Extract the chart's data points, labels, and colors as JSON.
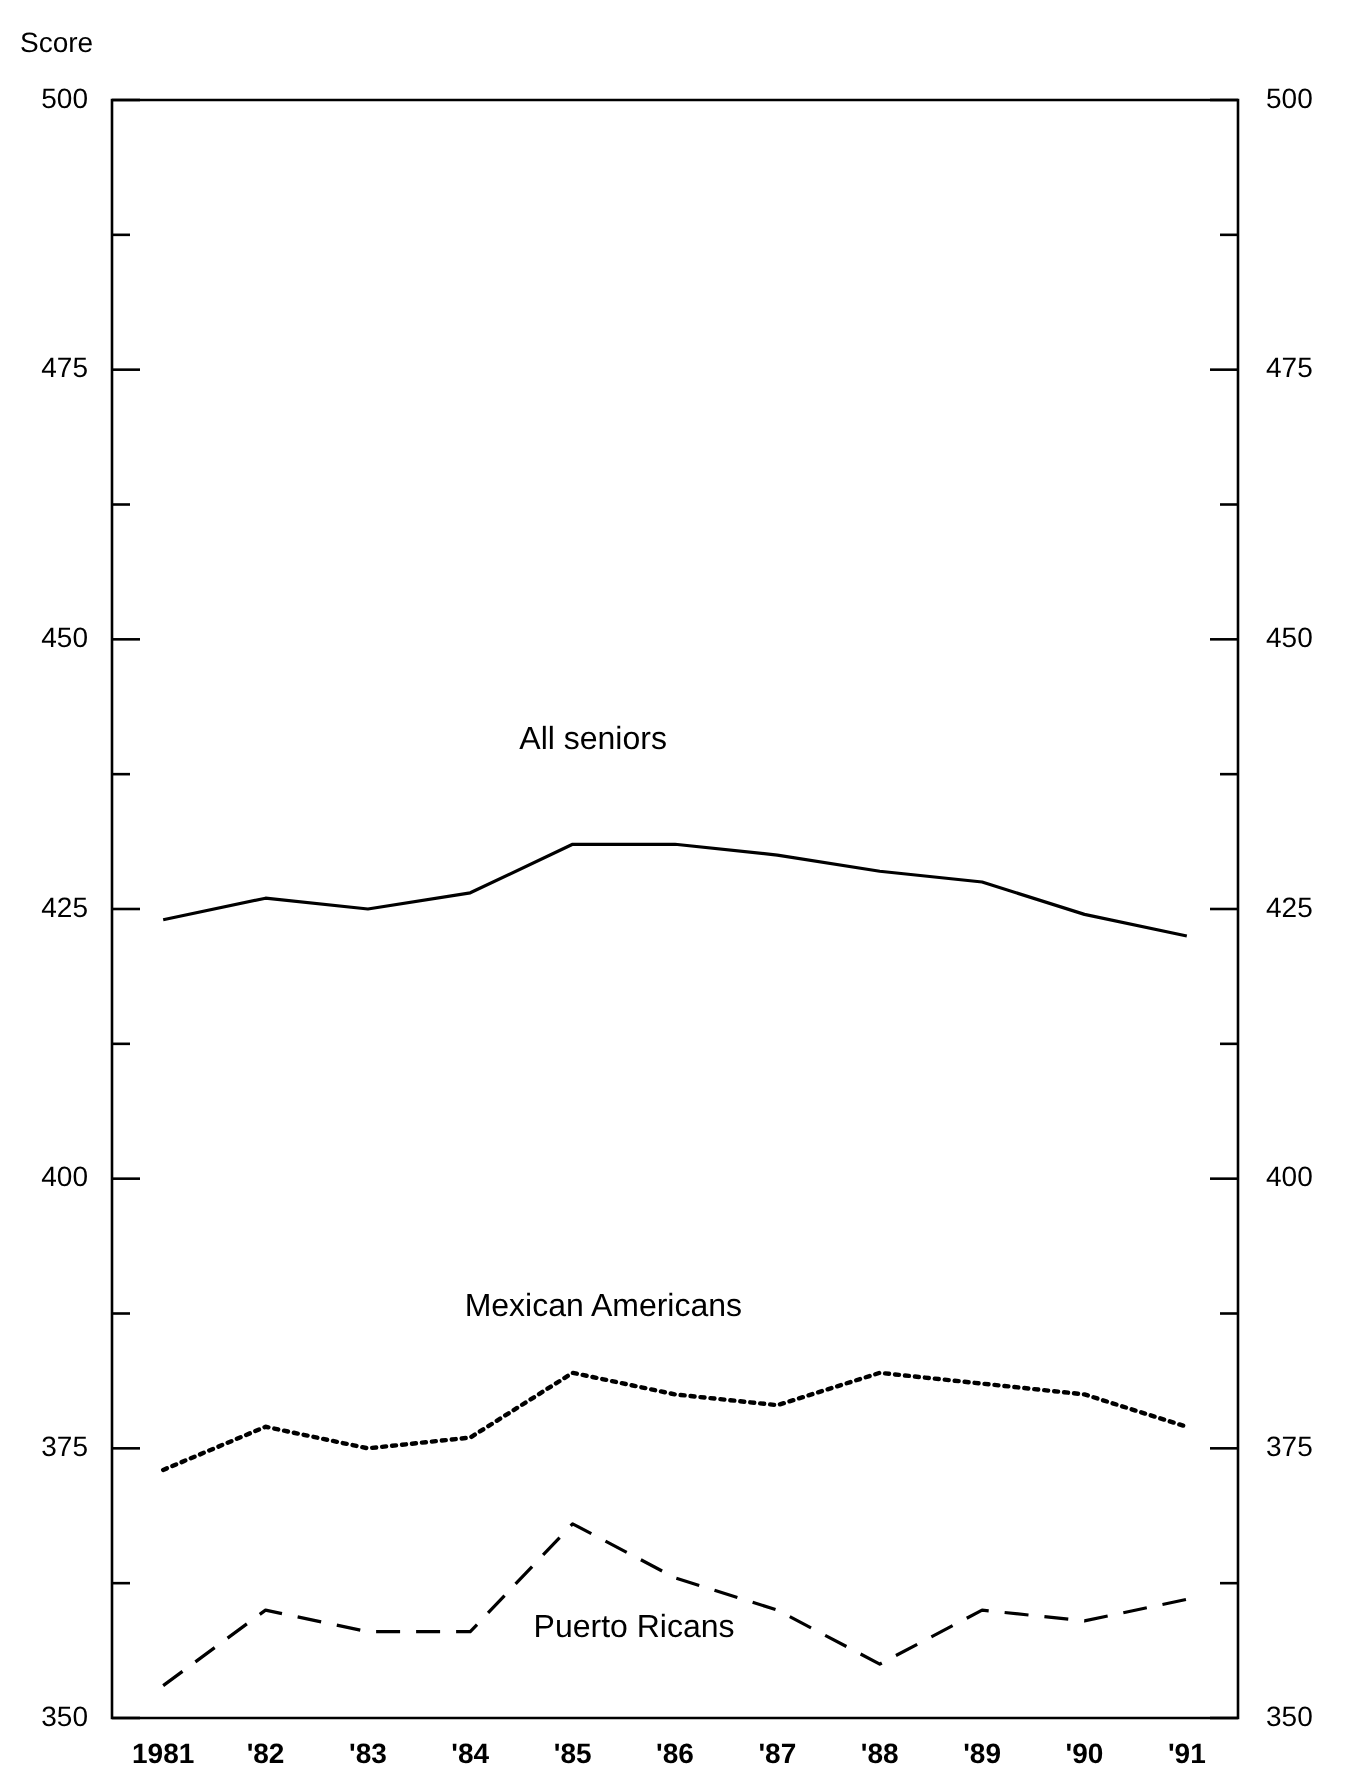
{
  "chart_data": {
    "type": "line",
    "ylabel": "Score",
    "categories": [
      "1981",
      "'82",
      "'83",
      "'84",
      "'85",
      "'86",
      "'87",
      "'88",
      "'89",
      "'90",
      "'91"
    ],
    "series": [
      {
        "name": "All seniors",
        "color": "#000000",
        "line_style": "solid",
        "values": [
          424,
          426,
          425,
          426.5,
          431,
          431,
          430,
          428.5,
          427.5,
          424.5,
          422.5
        ]
      },
      {
        "name": "Mexican Americans",
        "color": "#000000",
        "line_style": "dotted",
        "values": [
          373,
          377,
          375,
          376,
          382,
          380,
          379,
          382,
          381,
          380,
          377
        ]
      },
      {
        "name": "Puerto Ricans",
        "color": "#000000",
        "line_style": "dashed",
        "values": [
          353,
          360,
          358,
          358,
          368,
          363,
          360,
          355,
          360,
          359,
          361
        ]
      }
    ],
    "ylim": [
      350,
      500
    ],
    "yticks": [
      350,
      {
        "value": 362.5,
        "label": null
      },
      375,
      {
        "value": 387.5,
        "label": null
      },
      400,
      {
        "value": 412.5,
        "label": null
      },
      425,
      {
        "value": 437.5,
        "label": null
      },
      450,
      {
        "value": 462.5,
        "label": null
      },
      475,
      {
        "value": 487.5,
        "label": null
      },
      500
    ],
    "y2lim": [
      350,
      500
    ],
    "y2ticks": [
      350,
      {
        "value": 362.5,
        "label": null
      },
      375,
      {
        "value": 387.5,
        "label": null
      },
      400,
      {
        "value": 412.5,
        "label": null
      },
      425,
      {
        "value": 437.5,
        "label": null
      },
      450,
      {
        "value": 462.5,
        "label": null
      },
      475,
      {
        "value": 487.5,
        "label": null
      },
      500
    ],
    "grid": false,
    "legend": false,
    "marker": "none"
  }
}
